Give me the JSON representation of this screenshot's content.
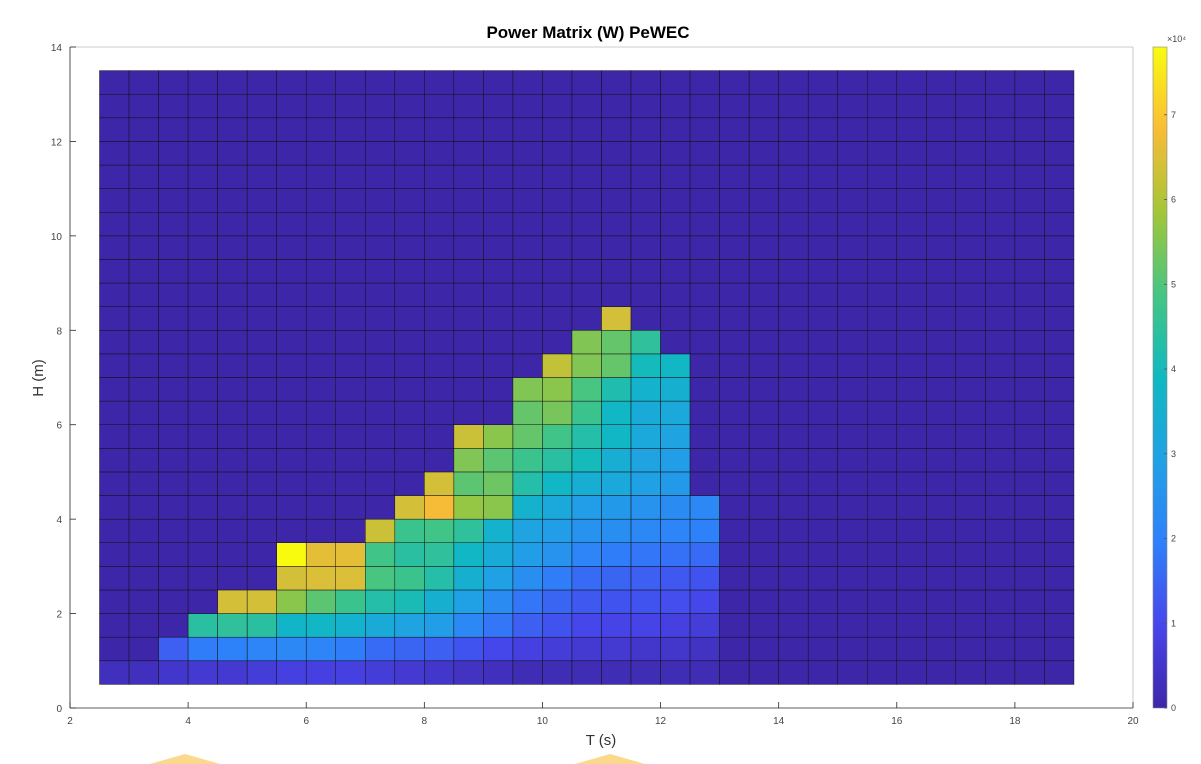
{
  "chart_data": {
    "type": "heatmap",
    "title": "Power Matrix (W) PeWEC",
    "xlabel": "T (s)",
    "ylabel": "H (m)",
    "xlim": [
      2,
      20
    ],
    "ylim": [
      0,
      14
    ],
    "x_ticks": [
      2,
      4,
      6,
      8,
      10,
      12,
      14,
      16,
      18,
      20
    ],
    "y_ticks": [
      0,
      2,
      4,
      6,
      8,
      10,
      12,
      14
    ],
    "grid": false,
    "colormap": "parula",
    "colorbar": {
      "min": 0,
      "max": 78000,
      "ticks": [
        0,
        1,
        2,
        3,
        4,
        5,
        6,
        7
      ],
      "exponent_label": "×10⁴",
      "placement": "right"
    },
    "x_edges_start": 2.5,
    "x_edges_step": 0.5,
    "x_cells": 33,
    "y_edges_start": 0.5,
    "y_edges_step": 0.5,
    "y_cells": 26,
    "nonzero_columns": [
      {
        "T": 3.0,
        "values": [
          3000
        ]
      },
      {
        "T": 3.5,
        "values": [
          3000
        ]
      },
      {
        "T": 4.0,
        "values": [
          5000,
          14000
        ]
      },
      {
        "T": 4.5,
        "values": [
          6000,
          19000,
          44000
        ]
      },
      {
        "T": 5.0,
        "values": [
          6000,
          20000,
          45000,
          64000
        ]
      },
      {
        "T": 5.5,
        "values": [
          7000,
          21000,
          44000,
          64000
        ]
      },
      {
        "T": 6.0,
        "values": [
          8000,
          22000,
          37000,
          56000,
          64000,
          78000
        ]
      },
      {
        "T": 6.5,
        "values": [
          8000,
          21000,
          38000,
          51000,
          65000,
          66000
        ]
      },
      {
        "T": 7.0,
        "values": [
          8000,
          19000,
          36000,
          47000,
          65000,
          66000
        ]
      },
      {
        "T": 7.5,
        "values": [
          7000,
          16000,
          33000,
          43000,
          49000,
          48000,
          63000
        ]
      },
      {
        "T": 8.0,
        "values": [
          6000,
          15000,
          30000,
          41000,
          47000,
          44000,
          47000,
          64000
        ]
      },
      {
        "T": 8.5,
        "values": [
          5000,
          14000,
          28000,
          35000,
          43000,
          45000,
          48000,
          68000,
          64000
        ]
      },
      {
        "T": 9.0,
        "values": [
          4000,
          12000,
          22000,
          29000,
          35000,
          38000,
          45000,
          57000,
          51000,
          55000,
          63000
        ]
      },
      {
        "T": 9.5,
        "values": [
          3000,
          10000,
          18000,
          23000,
          29000,
          33000,
          36000,
          56000,
          53000,
          51000,
          56000
        ]
      },
      {
        "T": 10.0,
        "values": [
          2000,
          8000,
          14000,
          18000,
          24000,
          28000,
          30000,
          36000,
          43000,
          47000,
          52000,
          52000,
          55000
        ]
      },
      {
        "T": 10.5,
        "values": [
          2000,
          7000,
          12000,
          15000,
          19000,
          25000,
          28000,
          32000,
          38000,
          44000,
          48000,
          54000,
          56000,
          62000
        ]
      },
      {
        "T": 11.0,
        "values": [
          2000,
          6000,
          10000,
          13000,
          16000,
          21000,
          25000,
          28000,
          34000,
          40000,
          43000,
          47000,
          49000,
          55000,
          55000
        ]
      },
      {
        "T": 11.5,
        "values": [
          2000,
          6000,
          9000,
          12000,
          15000,
          19000,
          24000,
          27000,
          32000,
          34000,
          38000,
          38000,
          42000,
          52000,
          52000,
          64000
        ]
      },
      {
        "T": 12.0,
        "values": [
          2000,
          5000,
          9000,
          12000,
          14000,
          18000,
          22000,
          25000,
          29000,
          30000,
          32000,
          33000,
          36000,
          40000,
          45000
        ]
      },
      {
        "T": 12.5,
        "values": [
          2000,
          5000,
          8000,
          11000,
          13000,
          17000,
          21000,
          23000,
          27000,
          28000,
          30000,
          32000,
          35000,
          38000
        ]
      },
      {
        "T": 13.0,
        "values": [
          2000,
          4000,
          7000,
          10000,
          12000,
          16000,
          20000,
          22000
        ]
      }
    ]
  }
}
